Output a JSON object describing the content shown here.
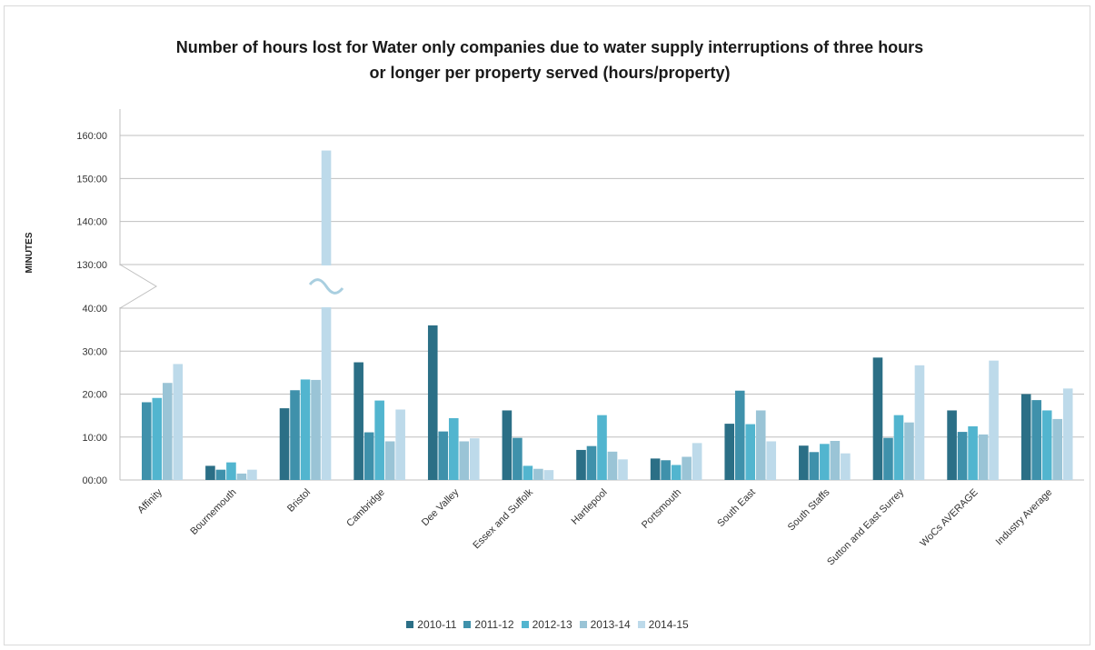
{
  "chart_data": {
    "type": "bar",
    "title_lines": [
      "Number of hours lost for Water only companies due to water supply interruptions of three hours",
      "or longer per property served (hours/property)"
    ],
    "ylabel": "MINUTES",
    "xlabel": "",
    "axis_break": {
      "lower_max": 40,
      "upper_min": 130
    },
    "lower_ticks": [
      "00:00",
      "10:00",
      "20:00",
      "30:00",
      "40:00"
    ],
    "upper_ticks": [
      "130:00",
      "140:00",
      "150:00",
      "160:00"
    ],
    "ylim": [
      0,
      160
    ],
    "grid": true,
    "legend_position": "bottom",
    "categories": [
      "Affinity",
      "Bournemouth",
      "Bristol",
      "Cambridge",
      "Dee Valley",
      "Essex and Suffolk",
      "Hartlepool",
      "Portsmouth",
      "South East",
      "South Staffs",
      "Sutton and East Surrey",
      "WoCs AVERAGE",
      "Industry Average"
    ],
    "series": [
      {
        "name": "2010-11",
        "color": "#2b6f86",
        "values": [
          null,
          3.3,
          16.7,
          27.4,
          36,
          16.2,
          7.0,
          5.0,
          13.1,
          8.0,
          28.5,
          16.2,
          20.0
        ]
      },
      {
        "name": "2011-12",
        "color": "#3f91ab",
        "values": [
          18.1,
          2.4,
          20.9,
          11.1,
          11.3,
          9.8,
          7.9,
          4.6,
          20.8,
          6.5,
          9.8,
          11.2,
          18.6
        ]
      },
      {
        "name": "2012-13",
        "color": "#52b5cf",
        "values": [
          19.1,
          4.1,
          23.4,
          18.5,
          14.4,
          3.3,
          15.1,
          3.5,
          13.0,
          8.4,
          15.1,
          12.5,
          16.2
        ]
      },
      {
        "name": "2013-14",
        "color": "#9ac4d6",
        "values": [
          22.6,
          1.5,
          23.3,
          9.0,
          9.0,
          2.6,
          6.6,
          5.4,
          16.2,
          9.1,
          13.4,
          10.6,
          14.2
        ]
      },
      {
        "name": "2014-15",
        "color": "#bddaea",
        "values": [
          27.0,
          2.4,
          156.5,
          16.4,
          9.7,
          2.3,
          4.8,
          8.6,
          9.0,
          6.2,
          26.7,
          27.8,
          21.3
        ]
      }
    ]
  }
}
